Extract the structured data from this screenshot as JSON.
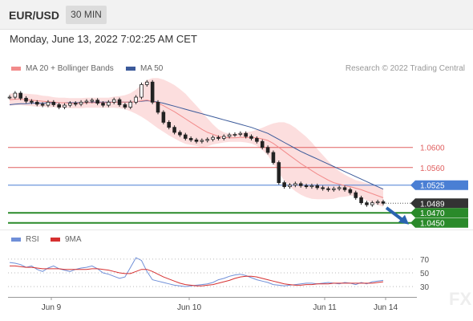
{
  "header": {
    "symbol": "EUR/USD",
    "timeframe": "30 MIN"
  },
  "datetime": "Monday, June 13, 2022 7:02:25 AM CET",
  "credit": "Research © 2022 Trading Central",
  "watermark": "FX",
  "colors": {
    "ma20": "#f28b8b",
    "ma50": "#3b5a9a",
    "bands": "#fcd8d8",
    "resistance": "#e06060",
    "pivot": "#4a7fd4",
    "support": "#2a8a2a",
    "rsi": "#6f8fd8",
    "rsi_ma": "#d63030"
  },
  "chart_data": [
    {
      "type": "line",
      "legend": [
        {
          "name": "MA 20 + Bollinger Bands",
          "color": "#f28b8b"
        },
        {
          "name": "MA 50",
          "color": "#3b5a9a"
        }
      ],
      "x_ticks": [
        "Jun 9",
        "Jun 10",
        "Jun 11",
        "Jun 14"
      ],
      "levels": [
        {
          "label": "1.0600",
          "value": 1.06,
          "kind": "resistance"
        },
        {
          "label": "1.0560",
          "value": 1.056,
          "kind": "resistance"
        },
        {
          "label": "1.0525",
          "value": 1.0525,
          "kind": "pivot"
        },
        {
          "label": "1.0489",
          "value": 1.0489,
          "kind": "last"
        },
        {
          "label": "1.0470",
          "value": 1.047,
          "kind": "support"
        },
        {
          "label": "1.0450",
          "value": 1.045,
          "kind": "support"
        }
      ],
      "ylim": [
        1.044,
        1.074
      ],
      "price": [
        1.07,
        1.0708,
        1.0698,
        1.0692,
        1.069,
        1.0686,
        1.0684,
        1.069,
        1.0685,
        1.068,
        1.0684,
        1.0688,
        1.0686,
        1.069,
        1.0692,
        1.0694,
        1.0688,
        1.0684,
        1.069,
        1.0695,
        1.0685,
        1.068,
        1.069,
        1.07,
        1.0725,
        1.073,
        1.069,
        1.067,
        1.065,
        1.064,
        1.063,
        1.0625,
        1.0618,
        1.0615,
        1.0612,
        1.0614,
        1.0616,
        1.062,
        1.0618,
        1.0622,
        1.0625,
        1.0626,
        1.0628,
        1.0622,
        1.0618,
        1.0612,
        1.06,
        1.059,
        1.057,
        1.053,
        1.0522,
        1.0525,
        1.0528,
        1.0524,
        1.0522,
        1.0524,
        1.052,
        1.0518,
        1.0516,
        1.0518,
        1.052,
        1.0516,
        1.051,
        1.05,
        1.049,
        1.0486,
        1.049,
        1.0492,
        1.0489
      ],
      "ma20": [
        1.0695,
        1.0696,
        1.0696,
        1.0695,
        1.0694,
        1.0693,
        1.0692,
        1.0691,
        1.069,
        1.0689,
        1.0689,
        1.0688,
        1.0688,
        1.0688,
        1.0689,
        1.0689,
        1.0689,
        1.0689,
        1.0689,
        1.069,
        1.069,
        1.069,
        1.069,
        1.0691,
        1.0693,
        1.0694,
        1.0692,
        1.0688,
        1.0683,
        1.0677,
        1.0671,
        1.0664,
        1.0657,
        1.065,
        1.0643,
        1.0636,
        1.063,
        1.0626,
        1.0622,
        1.062,
        1.0619,
        1.0619,
        1.062,
        1.062,
        1.062,
        1.0619,
        1.0617,
        1.0614,
        1.0608,
        1.06,
        1.0592,
        1.0584,
        1.0576,
        1.0568,
        1.0561,
        1.0554,
        1.0547,
        1.0541,
        1.0535,
        1.053,
        1.0527,
        1.0524,
        1.0522,
        1.0519,
        1.0516,
        1.0512,
        1.0508,
        1.0504,
        1.05
      ],
      "ma50": [
        1.0685,
        1.0686,
        1.0687,
        1.0687,
        1.0688,
        1.0688,
        1.0688,
        1.0689,
        1.0689,
        1.0689,
        1.0689,
        1.0689,
        1.0689,
        1.0689,
        1.0689,
        1.069,
        1.069,
        1.069,
        1.069,
        1.069,
        1.069,
        1.069,
        1.069,
        1.0691,
        1.0692,
        1.0693,
        1.0692,
        1.069,
        1.0688,
        1.0685,
        1.0682,
        1.0679,
        1.0676,
        1.0673,
        1.067,
        1.0667,
        1.0664,
        1.0661,
        1.0658,
        1.0655,
        1.0652,
        1.0649,
        1.0646,
        1.0643,
        1.064,
        1.0636,
        1.0632,
        1.0628,
        1.0622,
        1.0616,
        1.061,
        1.0604,
        1.0598,
        1.0592,
        1.0587,
        1.0582,
        1.0577,
        1.0572,
        1.0567,
        1.0562,
        1.0557,
        1.0552,
        1.0547,
        1.0542,
        1.0537,
        1.0532,
        1.0527,
        1.0522,
        1.0517
      ],
      "band_width": [
        0.0012,
        0.0012,
        0.0012,
        0.0012,
        0.0012,
        0.0012,
        0.0011,
        0.0011,
        0.001,
        0.001,
        0.001,
        0.001,
        0.001,
        0.001,
        0.001,
        0.001,
        0.001,
        0.001,
        0.001,
        0.0011,
        0.0012,
        0.0014,
        0.0018,
        0.0024,
        0.0032,
        0.004,
        0.0046,
        0.005,
        0.0052,
        0.0053,
        0.0053,
        0.0052,
        0.005,
        0.0045,
        0.004,
        0.0035,
        0.0028,
        0.002,
        0.0014,
        0.001,
        0.0008,
        0.0008,
        0.0009,
        0.001,
        0.0012,
        0.0016,
        0.0022,
        0.003,
        0.004,
        0.005,
        0.0058,
        0.0062,
        0.0063,
        0.0062,
        0.006,
        0.0056,
        0.005,
        0.0044,
        0.0038,
        0.0032,
        0.0026,
        0.0022,
        0.0018,
        0.0016,
        0.0016,
        0.0017,
        0.0018,
        0.0018,
        0.0018
      ],
      "forecast_arrow": {
        "from": 1.048,
        "to": 1.045
      }
    },
    {
      "type": "line",
      "legend": [
        {
          "name": "RSI",
          "color": "#6f8fd8"
        },
        {
          "name": "9MA",
          "color": "#d63030"
        }
      ],
      "y_ticks": [
        70,
        50,
        30
      ],
      "ylim": [
        15,
        85
      ],
      "rsi": [
        65,
        64,
        62,
        58,
        60,
        55,
        52,
        57,
        60,
        56,
        54,
        52,
        55,
        57,
        58,
        60,
        56,
        50,
        48,
        45,
        42,
        44,
        58,
        72,
        68,
        52,
        40,
        38,
        36,
        34,
        32,
        31,
        30,
        31,
        32,
        33,
        34,
        36,
        40,
        42,
        45,
        47,
        48,
        46,
        43,
        40,
        38,
        36,
        33,
        32,
        31,
        32,
        33,
        34,
        35,
        35,
        34,
        35,
        36,
        35,
        34,
        36,
        35,
        33,
        36,
        34,
        37,
        38,
        39
      ],
      "rsi_ma": [
        60,
        60,
        59,
        58,
        58,
        57,
        56,
        56,
        56,
        56,
        55,
        55,
        55,
        55,
        55,
        56,
        56,
        55,
        54,
        52,
        50,
        49,
        49,
        52,
        55,
        55,
        52,
        48,
        44,
        41,
        38,
        35,
        33,
        32,
        31,
        31,
        32,
        33,
        35,
        37,
        39,
        42,
        44,
        45,
        45,
        44,
        42,
        40,
        38,
        36,
        34,
        33,
        32,
        32,
        33,
        33,
        34,
        34,
        34,
        35,
        35,
        35,
        35,
        35,
        35,
        35,
        35,
        36,
        37
      ]
    }
  ]
}
